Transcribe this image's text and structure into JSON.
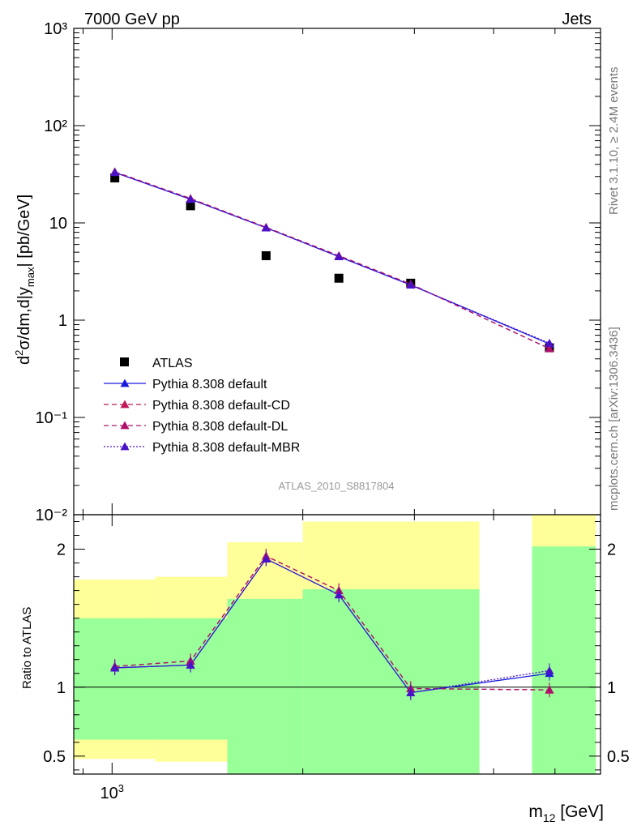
{
  "header": {
    "left": "7000 GeV pp",
    "right": "Jets"
  },
  "side_texts": {
    "rivet": "Rivet 3.1.10, ≥ 2.4M events",
    "mcplots": "mcplots.cern.ch [arXiv:1306.3436]"
  },
  "watermark": "ATLAS_2010_S8817804",
  "colors": {
    "data": "#000000",
    "default": "#1a1adf",
    "cd": "#c0185a",
    "dl": "#b0106c",
    "mbr": "#4a12c8",
    "band_inner": "#99ff99",
    "band_outer": "#ffff99"
  },
  "chart_data": [
    {
      "type": "scatter",
      "ylabel": "d²σ/dm,d|y_max| [pb/GeV]",
      "yscale": "log",
      "ylim": [
        0.01,
        1000
      ],
      "y_ticks": [
        "10⁻²",
        "10⁻¹",
        "1",
        "10",
        "10²",
        "10³"
      ],
      "x": [
        1010,
        1330,
        1750,
        2280,
        2960,
        4900
      ],
      "series": [
        {
          "name": "ATLAS",
          "values": [
            29,
            15,
            4.6,
            2.7,
            2.4,
            0.52
          ]
        },
        {
          "name": "Pythia 8.308 default",
          "values": [
            33,
            17.5,
            8.9,
            4.5,
            2.3,
            0.57
          ]
        },
        {
          "name": "Pythia 8.308 default-CD",
          "values": [
            33.5,
            17.8,
            9.0,
            4.6,
            2.35,
            0.51
          ]
        },
        {
          "name": "Pythia 8.308 default-DL",
          "values": [
            33.5,
            17.8,
            9.0,
            4.6,
            2.35,
            0.51
          ]
        },
        {
          "name": "Pythia 8.308 default-MBR",
          "values": [
            33,
            17.5,
            8.9,
            4.5,
            2.3,
            0.58
          ]
        }
      ]
    },
    {
      "type": "line",
      "ylabel": "Ratio to ATLAS",
      "xlabel": "m₁₂ [GeV]",
      "x_tick_label": "10³",
      "ylim": [
        0.37,
        2.25
      ],
      "y_ticks": [
        "0.5",
        "1",
        "2"
      ],
      "x": [
        1010,
        1330,
        1750,
        2280,
        2960,
        4900
      ],
      "bands": [
        {
          "xlo": 870,
          "xhi": 1170,
          "inner": [
            0.62,
            1.5
          ],
          "outer": [
            0.48,
            1.78
          ]
        },
        {
          "xlo": 1170,
          "xhi": 1520,
          "inner": [
            0.62,
            1.5
          ],
          "outer": [
            0.46,
            1.8
          ]
        },
        {
          "xlo": 1520,
          "xhi": 2000,
          "inner": [
            0.37,
            1.64
          ],
          "outer": [
            0.37,
            2.05
          ]
        },
        {
          "xlo": 2000,
          "xhi": 3800,
          "inner": [
            0.37,
            1.71
          ],
          "outer": [
            0.37,
            2.2
          ]
        },
        {
          "xlo": 4600,
          "xhi": 5800,
          "inner": [
            0.37,
            2.02
          ],
          "outer": [
            0.37,
            2.25
          ]
        }
      ],
      "series": [
        {
          "name": "Pythia 8.308 default",
          "values": [
            1.14,
            1.16,
            1.93,
            1.67,
            0.96,
            1.1
          ]
        },
        {
          "name": "Pythia 8.308 default-CD",
          "values": [
            1.15,
            1.19,
            1.95,
            1.7,
            0.99,
            0.98
          ]
        },
        {
          "name": "Pythia 8.308 default-DL",
          "values": [
            1.15,
            1.19,
            1.95,
            1.7,
            0.99,
            0.98
          ]
        },
        {
          "name": "Pythia 8.308 default-MBR",
          "values": [
            1.14,
            1.16,
            1.93,
            1.67,
            0.96,
            1.12
          ]
        }
      ]
    }
  ]
}
